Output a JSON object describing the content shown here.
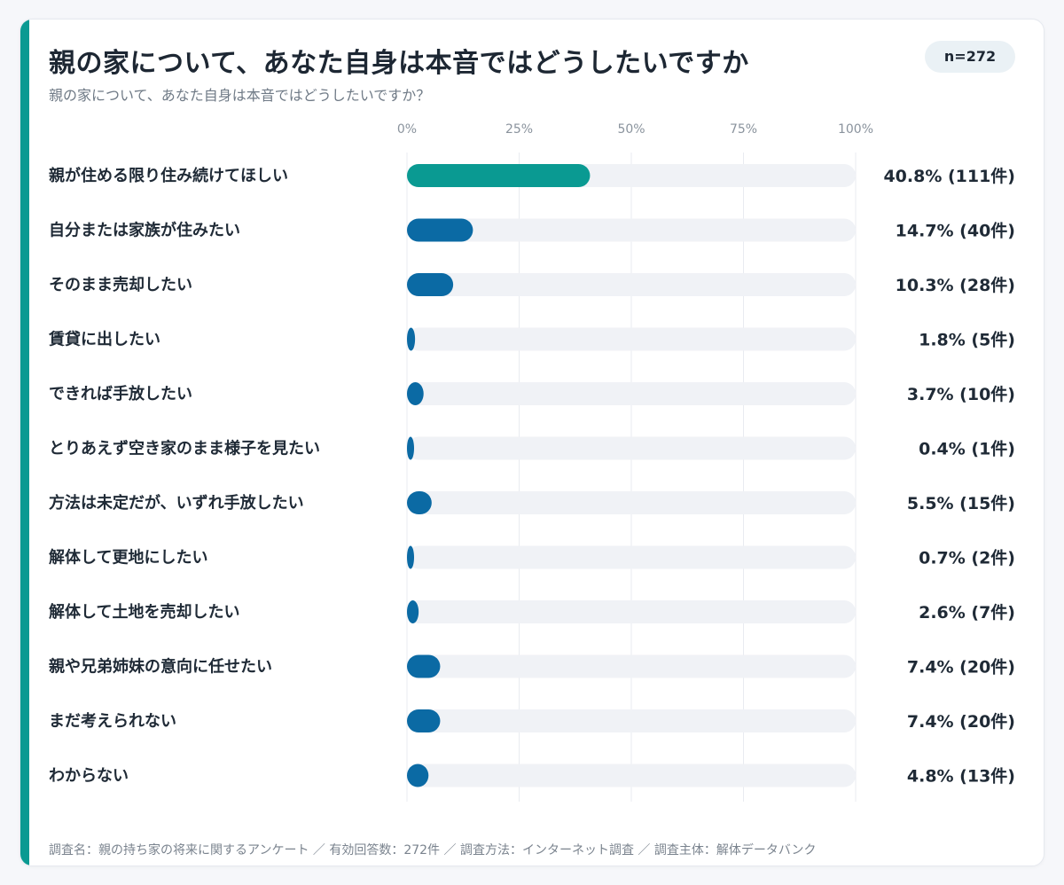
{
  "title": "親の家について、あなた自身は本音ではどうしたいですか",
  "subtitle": "親の家について、あなた自身は本音ではどうしたいですか？",
  "badge": "n=272",
  "footer": "調査名：親の持ち家の将来に関するアンケート ／ 有効回答数：272件 ／ 調査方法：インターネット調査 ／ 調査主体：解体データバンク",
  "colors": {
    "accent": "#0a9a92",
    "highlight_bar": "#0a9a92",
    "bar": "#0b6aa4",
    "track": "#f0f2f6",
    "grid": "#e8ebf0"
  },
  "chart_data": {
    "type": "bar",
    "orientation": "horizontal",
    "xlim": [
      0,
      100
    ],
    "ticks": [
      "0%",
      "25%",
      "50%",
      "75%",
      "100%"
    ],
    "tick_values": [
      0,
      25,
      50,
      75,
      100
    ],
    "categories": [
      "親が住める限り住み続けてほしい",
      "自分または家族が住みたい",
      "そのまま売却したい",
      "賃貸に出したい",
      "できれば手放したい",
      "とりあえず空き家のまま様子を見たい",
      "方法は未定だが、いずれ手放したい",
      "解体して更地にしたい",
      "解体して土地を売却したい",
      "親や兄弟姉妹の意向に任せたい",
      "まだ考えられない",
      "わからない"
    ],
    "values": [
      40.8,
      14.7,
      10.3,
      1.8,
      3.7,
      0.4,
      5.5,
      0.7,
      2.6,
      7.4,
      7.4,
      4.8
    ],
    "labels": [
      "40.8% (111件)",
      "14.7% (40件)",
      "10.3% (28件)",
      "1.8% (5件)",
      "3.7% (10件)",
      "0.4% (1件)",
      "5.5% (15件)",
      "0.7% (2件)",
      "2.6% (7件)",
      "7.4% (20件)",
      "7.4% (20件)",
      "4.8% (13件)"
    ],
    "grid": true
  }
}
